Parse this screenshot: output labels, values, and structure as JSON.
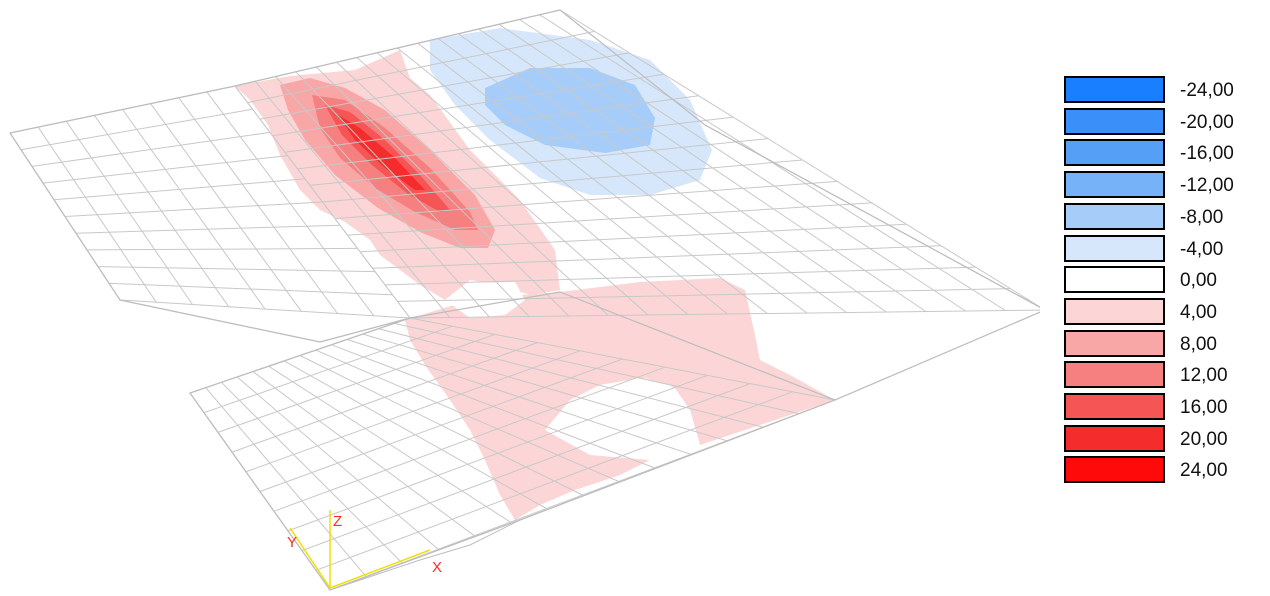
{
  "legend": {
    "entries": [
      {
        "label": "-24,00",
        "color": "#1a7fff"
      },
      {
        "label": "-20,00",
        "color": "#3a8ff8"
      },
      {
        "label": "-16,00",
        "color": "#559ff6"
      },
      {
        "label": "-12,00",
        "color": "#76b2f7"
      },
      {
        "label": "-8,00",
        "color": "#a6cdfa"
      },
      {
        "label": "-4,00",
        "color": "#d6e7fc"
      },
      {
        "label": "0,00",
        "color": "#ffffff"
      },
      {
        "label": "4,00",
        "color": "#fcd6d6"
      },
      {
        "label": "8,00",
        "color": "#f9a6a6"
      },
      {
        "label": "12,00",
        "color": "#f67f7f"
      },
      {
        "label": "16,00",
        "color": "#f55555"
      },
      {
        "label": "20,00",
        "color": "#f42c2c"
      },
      {
        "label": "24,00",
        "color": "#ff0a0a"
      }
    ]
  },
  "axes": {
    "x_label": "X",
    "y_label": "Y",
    "z_label": "Z",
    "axis_color": "#f0e000",
    "label_color": "#ff2a2a"
  },
  "mesh": {
    "grid_color": "#c8c8c8",
    "background": "#ffffff"
  }
}
